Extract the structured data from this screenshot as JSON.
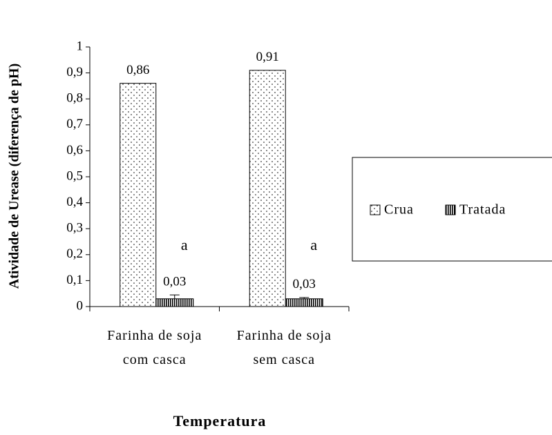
{
  "chart_data": {
    "type": "bar",
    "y_label": "Atividade de Urease (diferença de pH)",
    "x_label": "Temperatura",
    "categories": [
      "Farinha de soja com casca",
      "Farinha de soja sem casca"
    ],
    "series": [
      {
        "name": "Crua",
        "color": "#000000",
        "pattern": "dots",
        "values": [
          0.86,
          0.91
        ],
        "value_labels": [
          "0,86",
          "0,91"
        ]
      },
      {
        "name": "Tratada",
        "color": "#000000",
        "pattern": "vertical-lines",
        "values": [
          0.03,
          0.03
        ],
        "value_labels": [
          "0,03",
          "0,03"
        ],
        "errors": [
          0.015,
          0.005
        ],
        "significance_labels": [
          "a",
          "a"
        ]
      }
    ],
    "ylim": [
      0,
      1
    ],
    "yticks": [
      0,
      {
        "value": 0.1,
        "label": "0,1"
      },
      {
        "value": 0.2,
        "label": "0,2"
      },
      {
        "value": 0.3,
        "label": "0,3"
      },
      {
        "value": 0.4,
        "label": "0,4"
      },
      {
        "value": 0.5,
        "label": "0,5"
      },
      {
        "value": 0.6,
        "label": "0,6"
      },
      {
        "value": 0.7,
        "label": "0,7"
      },
      {
        "value": 0.8,
        "label": "0,8"
      },
      {
        "value": 0.9,
        "label": "0,9"
      },
      1
    ],
    "grid": false,
    "legend": "right"
  }
}
